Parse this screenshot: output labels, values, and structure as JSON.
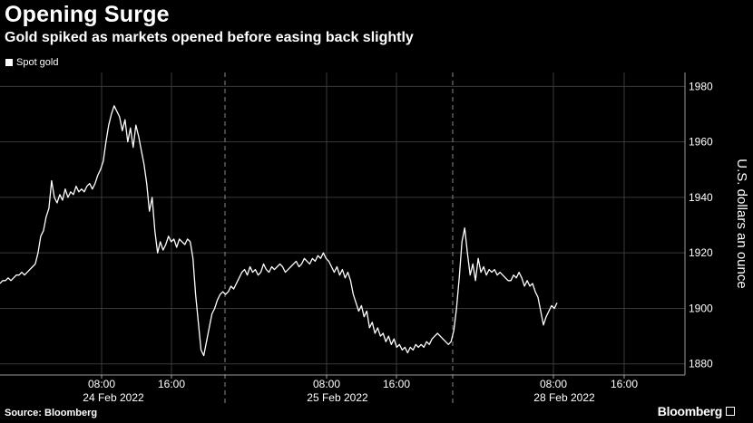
{
  "header": {
    "title": "Opening Surge",
    "subtitle": "Gold spiked as markets opened before easing back slightly"
  },
  "legend": {
    "label": "Spot gold"
  },
  "footer": {
    "source": "Source: Bloomberg",
    "brand": "Bloomberg"
  },
  "chart_data": {
    "type": "line",
    "ylabel": "U.S. dollars an ounce",
    "ylim": [
      1876,
      1985
    ],
    "yticks": [
      1880,
      1900,
      1920,
      1940,
      1960,
      1980
    ],
    "x_tick_labels": [
      "08:00",
      "16:00",
      "08:00",
      "16:00",
      "08:00",
      "16:00"
    ],
    "date_labels": [
      "24 Feb 2022",
      "25 Feb 2022",
      "28 Feb 2022"
    ],
    "grid": true,
    "legend_position": "top-left",
    "series": [
      {
        "name": "Spot gold",
        "color": "#ffffff",
        "values": [
          1909,
          1910,
          1910,
          1911,
          1910,
          1911,
          1912,
          1912,
          1913,
          1912,
          1913,
          1914,
          1915,
          1916,
          1920,
          1926,
          1928,
          1933,
          1936,
          1946,
          1940,
          1938,
          1941,
          1939,
          1943,
          1940,
          1942,
          1941,
          1944,
          1942,
          1943,
          1942,
          1944,
          1945,
          1943,
          1945,
          1948,
          1950,
          1953,
          1960,
          1966,
          1970,
          1973,
          1971,
          1969,
          1964,
          1968,
          1960,
          1965,
          1958,
          1966,
          1962,
          1957,
          1952,
          1945,
          1935,
          1940,
          1928,
          1920,
          1924,
          1921,
          1923,
          1926,
          1924,
          1925,
          1922,
          1925,
          1924,
          1923,
          1925,
          1924,
          1918,
          1905,
          1895,
          1885,
          1883,
          1888,
          1893,
          1898,
          1900,
          1903,
          1905,
          1906,
          1905,
          1906,
          1908,
          1907,
          1909,
          1911,
          1913,
          1914,
          1912,
          1915,
          1913,
          1914,
          1912,
          1913,
          1916,
          1914,
          1913,
          1915,
          1914,
          1915,
          1916,
          1915,
          1913,
          1914,
          1915,
          1916,
          1917,
          1915,
          1916,
          1918,
          1917,
          1916,
          1918,
          1917,
          1919,
          1918,
          1920,
          1918,
          1917,
          1915,
          1913,
          1915,
          1912,
          1914,
          1911,
          1913,
          1910,
          1905,
          1902,
          1899,
          1901,
          1897,
          1899,
          1893,
          1895,
          1891,
          1893,
          1890,
          1891,
          1888,
          1890,
          1887,
          1889,
          1886,
          1887,
          1885,
          1886,
          1884,
          1886,
          1885,
          1887,
          1886,
          1887,
          1886,
          1888,
          1887,
          1889,
          1890,
          1891,
          1890,
          1889,
          1888,
          1887,
          1888,
          1892,
          1900,
          1911,
          1924,
          1929,
          1920,
          1912,
          1916,
          1910,
          1918,
          1913,
          1915,
          1912,
          1914,
          1913,
          1914,
          1912,
          1913,
          1912,
          1911,
          1910,
          1910,
          1912,
          1911,
          1913,
          1911,
          1908,
          1910,
          1908,
          1909,
          1906,
          1904,
          1899,
          1894,
          1897,
          1899,
          1901,
          1900,
          1902
        ]
      }
    ]
  }
}
